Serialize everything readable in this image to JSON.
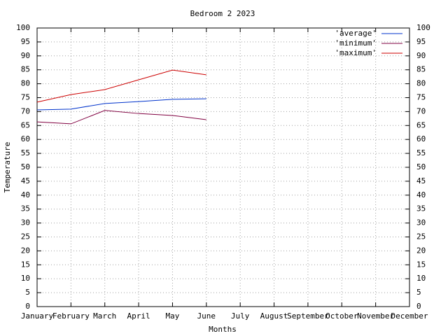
{
  "chart_data": {
    "type": "line",
    "title": "Bedroom 2 2023",
    "x_label": "Months",
    "y_label": "Temperature",
    "categories": [
      "January",
      "February",
      "March",
      "April",
      "May",
      "June",
      "July",
      "August",
      "September",
      "October",
      "November",
      "December"
    ],
    "series": [
      {
        "name": "'average'",
        "color": "#0033cc",
        "values": [
          70.6,
          70.9,
          72.9,
          73.6,
          74.4,
          74.6,
          null,
          null,
          null,
          null,
          null,
          null
        ]
      },
      {
        "name": "'minimum'",
        "color": "#800040",
        "values": [
          66.3,
          65.6,
          70.4,
          69.3,
          68.6,
          67.1,
          null,
          null,
          null,
          null,
          null,
          null
        ]
      },
      {
        "name": "'maximum'",
        "color": "#cc0000",
        "values": [
          73.4,
          76.1,
          77.9,
          81.4,
          84.9,
          83.2,
          null,
          null,
          null,
          null,
          null,
          null
        ]
      }
    ],
    "ylim": [
      0,
      100
    ],
    "yticks": [
      0,
      5,
      10,
      15,
      20,
      25,
      30,
      35,
      40,
      45,
      50,
      55,
      60,
      65,
      70,
      75,
      80,
      85,
      90,
      95,
      100
    ],
    "y2lim": [
      0,
      100
    ],
    "y2ticks": [
      0,
      5,
      10,
      15,
      20,
      25,
      30,
      35,
      40,
      45,
      50,
      55,
      60,
      65,
      70,
      75,
      80,
      85,
      90,
      95,
      100
    ],
    "grid": true,
    "legend": "top-right"
  }
}
